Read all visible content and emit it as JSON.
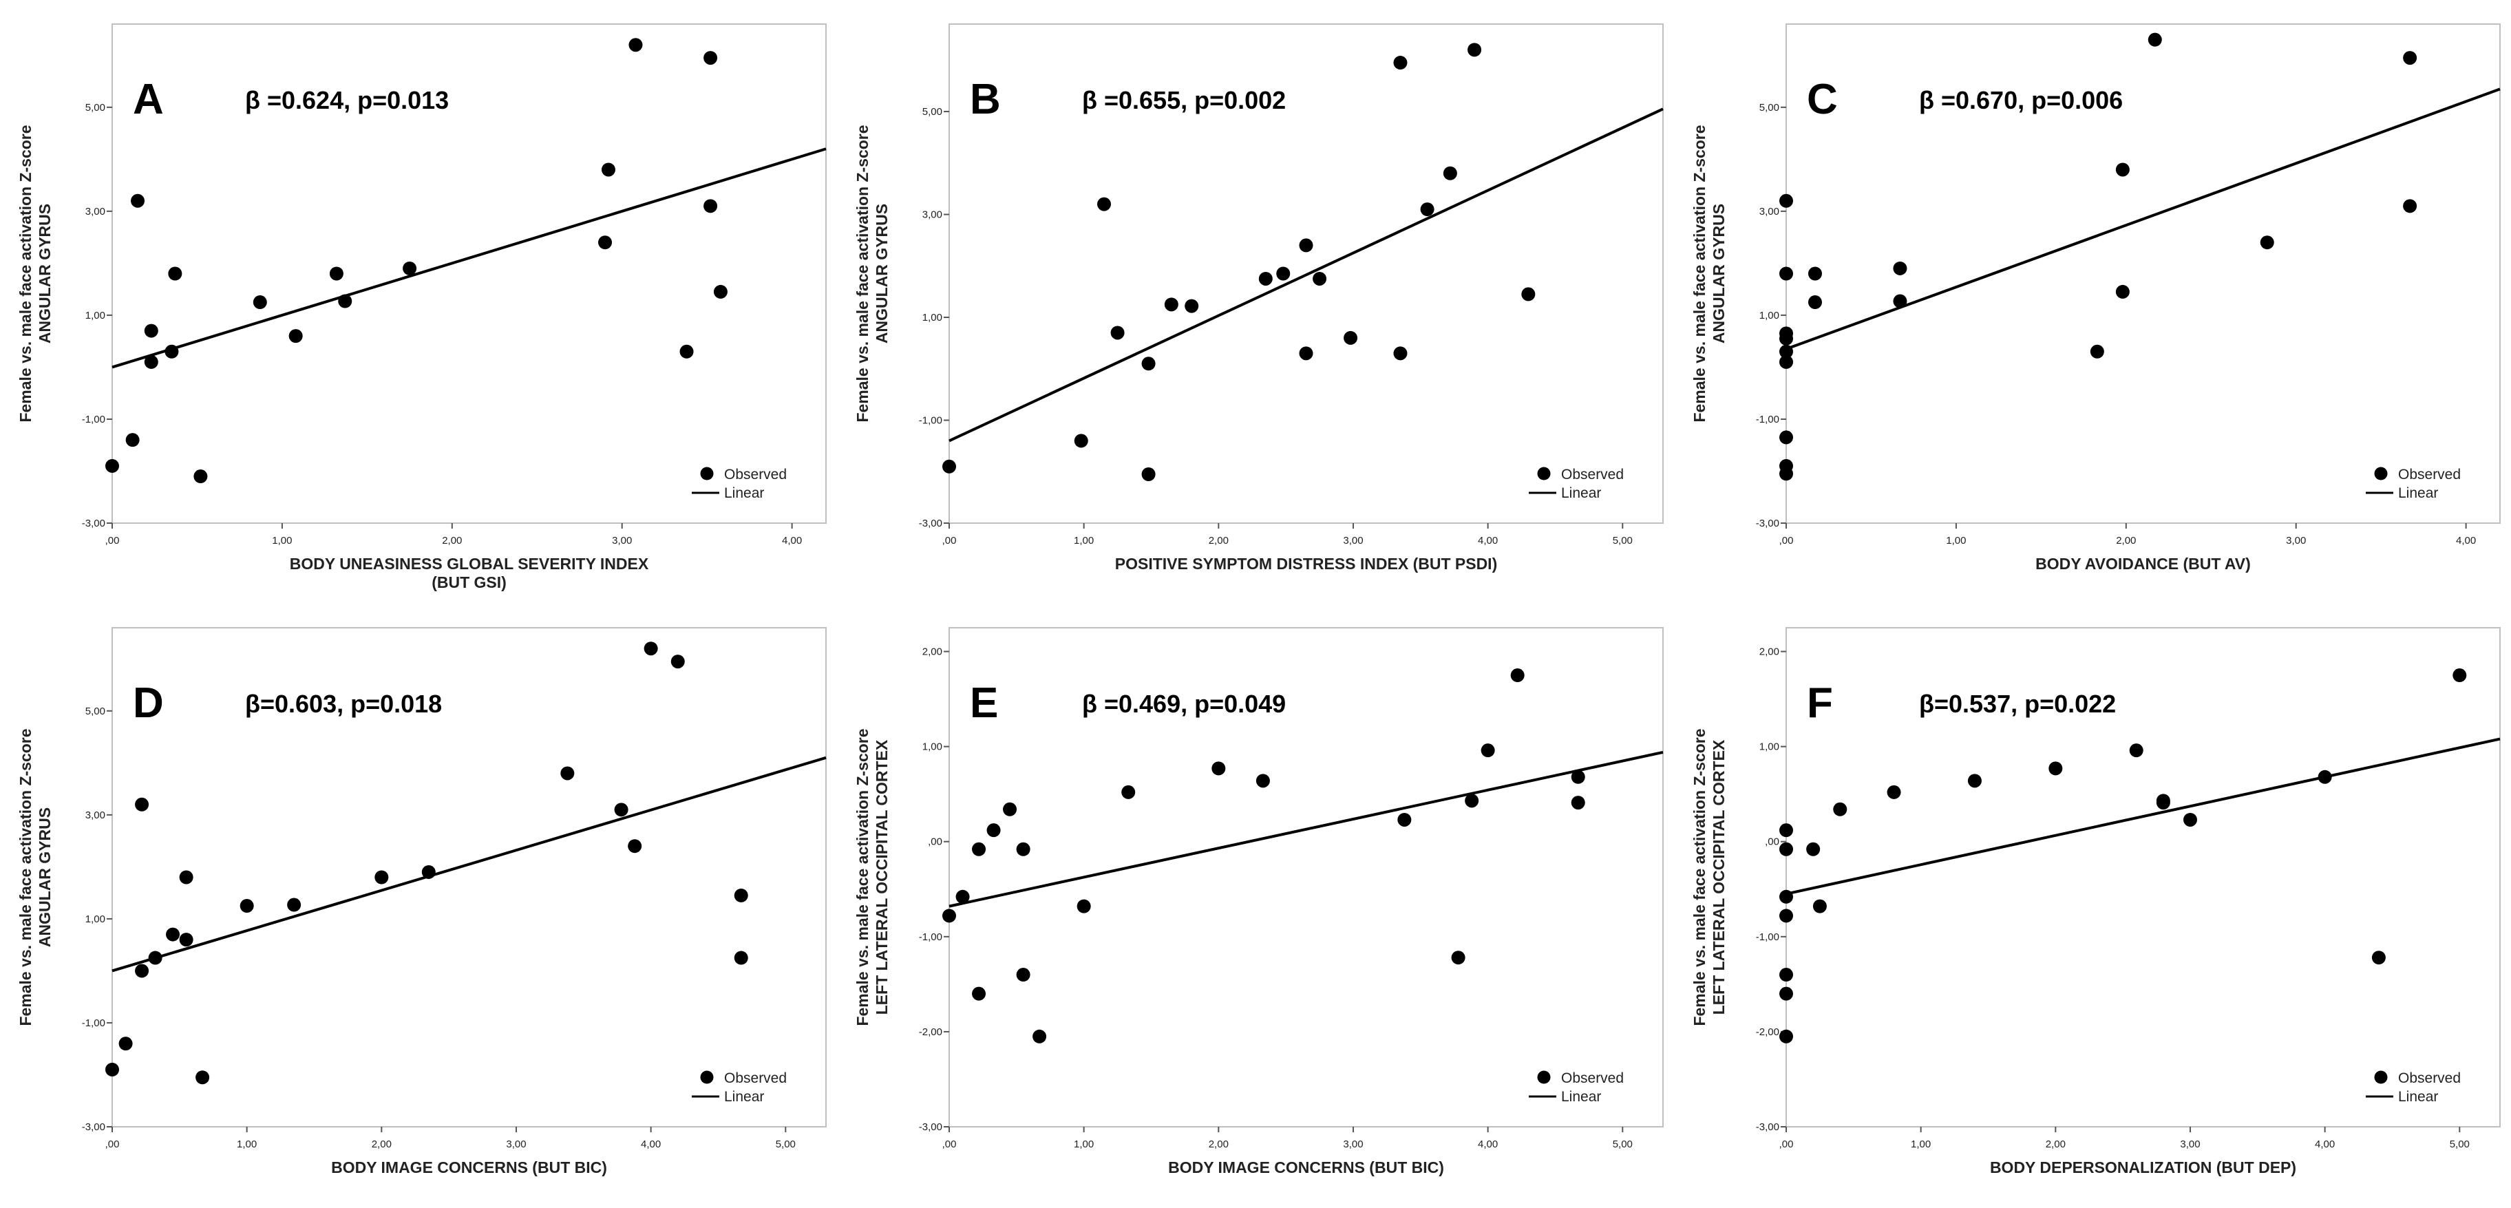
{
  "figure_title": "",
  "legend_labels": {
    "observed": "Observed",
    "linear": "Linear"
  },
  "chart_data": [
    {
      "type": "scatter",
      "panel_letter": "A",
      "stat_label": "β =0.624, p=0.013",
      "xlabel": [
        "BODY UNEASINESS GLOBAL SEVERITY INDEX",
        "(BUT GSI)"
      ],
      "ylabel": [
        "Female vs. male face activation Z-score",
        "ANGULAR GYRUS"
      ],
      "xlim": [
        0,
        4.2
      ],
      "ylim": [
        -3,
        6.6
      ],
      "xticks": [
        0,
        1,
        2,
        3,
        4
      ],
      "xtick_labels": [
        ",00",
        "1,00",
        "2,00",
        "3,00",
        "4,00"
      ],
      "yticks": [
        -3,
        -1,
        1,
        3,
        5
      ],
      "ytick_labels": [
        "-3,00",
        "-1,00",
        "1,00",
        "3,00",
        "5,00"
      ],
      "points": [
        [
          0.0,
          -1.9
        ],
        [
          0.12,
          -1.4
        ],
        [
          0.15,
          3.2
        ],
        [
          0.23,
          0.7
        ],
        [
          0.23,
          0.1
        ],
        [
          0.35,
          0.3
        ],
        [
          0.37,
          1.8
        ],
        [
          0.52,
          -2.1
        ],
        [
          0.87,
          1.25
        ],
        [
          1.08,
          0.6
        ],
        [
          1.32,
          1.8
        ],
        [
          1.37,
          1.27
        ],
        [
          1.75,
          1.9
        ],
        [
          2.9,
          2.4
        ],
        [
          2.92,
          3.8
        ],
        [
          3.08,
          6.2
        ],
        [
          3.38,
          0.3
        ],
        [
          3.52,
          3.1
        ],
        [
          3.52,
          5.95
        ],
        [
          3.58,
          1.45
        ]
      ],
      "fit_line": {
        "x": [
          0,
          4.2
        ],
        "y": [
          0.0,
          4.2
        ]
      }
    },
    {
      "type": "scatter",
      "panel_letter": "B",
      "stat_label": "β =0.655, p=0.002",
      "xlabel": [
        "POSITIVE SYMPTOM DISTRESS INDEX (BUT PSDI)"
      ],
      "ylabel": [
        "Female vs. male face activation Z-score",
        "ANGULAR GYRUS"
      ],
      "xlim": [
        0,
        5.3
      ],
      "ylim": [
        -3,
        6.7
      ],
      "xticks": [
        0,
        1,
        2,
        3,
        4,
        5
      ],
      "xtick_labels": [
        ",00",
        "1,00",
        "2,00",
        "3,00",
        "4,00",
        "5,00"
      ],
      "yticks": [
        -3,
        -1,
        1,
        3,
        5
      ],
      "ytick_labels": [
        "-3,00",
        "-1,00",
        "1,00",
        "3,00",
        "5,00"
      ],
      "points": [
        [
          0.0,
          -1.9
        ],
        [
          0.98,
          -1.4
        ],
        [
          1.15,
          3.2
        ],
        [
          1.25,
          0.7
        ],
        [
          1.48,
          0.1
        ],
        [
          1.48,
          -2.05
        ],
        [
          1.65,
          1.25
        ],
        [
          1.8,
          1.22
        ],
        [
          2.35,
          1.75
        ],
        [
          2.48,
          1.85
        ],
        [
          2.65,
          2.4
        ],
        [
          2.65,
          0.3
        ],
        [
          2.75,
          1.75
        ],
        [
          2.98,
          0.6
        ],
        [
          3.35,
          5.95
        ],
        [
          3.35,
          0.3
        ],
        [
          3.55,
          3.1
        ],
        [
          3.72,
          3.8
        ],
        [
          3.9,
          6.2
        ],
        [
          4.3,
          1.45
        ]
      ],
      "fit_line": {
        "x": [
          0,
          5.3
        ],
        "y": [
          -1.4,
          5.05
        ]
      }
    },
    {
      "type": "scatter",
      "panel_letter": "C",
      "stat_label": "β =0.670, p=0.006",
      "xlabel": [
        "BODY AVOIDANCE (BUT AV)"
      ],
      "ylabel": [
        "Female vs. male face activation Z-score",
        "ANGULAR GYRUS"
      ],
      "xlim": [
        0,
        4.2
      ],
      "ylim": [
        -3,
        6.6
      ],
      "xticks": [
        0,
        1,
        2,
        3,
        4
      ],
      "xtick_labels": [
        ",00",
        "1,00",
        "2,00",
        "3,00",
        "4,00"
      ],
      "yticks": [
        -3,
        -1,
        1,
        3,
        5
      ],
      "ytick_labels": [
        "-3,00",
        "-1,00",
        "1,00",
        "3,00",
        "5,00"
      ],
      "points": [
        [
          0.0,
          3.2
        ],
        [
          0.0,
          1.8
        ],
        [
          0.0,
          0.65
        ],
        [
          0.0,
          0.55
        ],
        [
          0.0,
          0.3
        ],
        [
          0.0,
          0.1
        ],
        [
          0.0,
          -1.35
        ],
        [
          0.0,
          -1.9
        ],
        [
          0.0,
          -2.05
        ],
        [
          0.17,
          1.8
        ],
        [
          0.17,
          1.25
        ],
        [
          0.67,
          1.9
        ],
        [
          0.67,
          1.27
        ],
        [
          1.83,
          0.3
        ],
        [
          1.98,
          3.8
        ],
        [
          1.98,
          1.45
        ],
        [
          2.17,
          6.3
        ],
        [
          2.83,
          2.4
        ],
        [
          3.67,
          5.95
        ],
        [
          3.67,
          3.1
        ]
      ],
      "fit_line": {
        "x": [
          0,
          4.2
        ],
        "y": [
          0.35,
          5.35
        ]
      }
    },
    {
      "type": "scatter",
      "panel_letter": "D",
      "stat_label": "β=0.603, p=0.018",
      "xlabel": [
        "BODY IMAGE CONCERNS (BUT BIC)"
      ],
      "ylabel": [
        "Female vs. male face activation Z-score",
        "ANGULAR GYRUS"
      ],
      "xlim": [
        0,
        5.3
      ],
      "ylim": [
        -3,
        6.6
      ],
      "xticks": [
        0,
        1,
        2,
        3,
        4,
        5
      ],
      "xtick_labels": [
        ",00",
        "1,00",
        "2,00",
        "3,00",
        "4,00",
        "5,00"
      ],
      "yticks": [
        -3,
        -1,
        1,
        3,
        5
      ],
      "ytick_labels": [
        "-3,00",
        "-1,00",
        "1,00",
        "3,00",
        "5,00"
      ],
      "points": [
        [
          0.0,
          -1.9
        ],
        [
          0.1,
          -1.4
        ],
        [
          0.22,
          3.2
        ],
        [
          0.22,
          0.0
        ],
        [
          0.32,
          0.25
        ],
        [
          0.45,
          0.7
        ],
        [
          0.55,
          1.8
        ],
        [
          0.55,
          0.6
        ],
        [
          0.67,
          -2.05
        ],
        [
          1.0,
          1.25
        ],
        [
          1.35,
          1.27
        ],
        [
          2.0,
          1.8
        ],
        [
          2.35,
          1.9
        ],
        [
          3.38,
          3.8
        ],
        [
          3.78,
          3.1
        ],
        [
          3.88,
          2.4
        ],
        [
          4.0,
          6.2
        ],
        [
          4.2,
          5.95
        ],
        [
          4.67,
          1.45
        ],
        [
          4.67,
          0.25
        ]
      ],
      "fit_line": {
        "x": [
          0,
          5.3
        ],
        "y": [
          0.0,
          4.1
        ]
      }
    },
    {
      "type": "scatter",
      "panel_letter": "E",
      "stat_label": "β =0.469, p=0.049",
      "xlabel": [
        "BODY IMAGE CONCERNS (BUT BIC)"
      ],
      "ylabel": [
        "Female vs. male face activation Z-score",
        "LEFT LATERAL OCCIPITAL CORTEX"
      ],
      "xlim": [
        0,
        5.3
      ],
      "ylim": [
        -3,
        2.25
      ],
      "xticks": [
        0,
        1,
        2,
        3,
        4,
        5
      ],
      "xtick_labels": [
        ",00",
        "1,00",
        "2,00",
        "3,00",
        "4,00",
        "5,00"
      ],
      "yticks": [
        -3,
        -2,
        -1,
        0,
        1,
        2
      ],
      "ytick_labels": [
        "-3,00",
        "-2,00",
        "-1,00",
        ",00",
        "1,00",
        "2,00"
      ],
      "points": [
        [
          0.0,
          -0.78
        ],
        [
          0.1,
          -0.58
        ],
        [
          0.22,
          -0.08
        ],
        [
          0.22,
          -1.6
        ],
        [
          0.33,
          0.12
        ],
        [
          0.45,
          0.34
        ],
        [
          0.55,
          -0.08
        ],
        [
          0.55,
          -1.4
        ],
        [
          0.67,
          -2.05
        ],
        [
          1.0,
          -0.68
        ],
        [
          1.33,
          0.52
        ],
        [
          2.0,
          0.77
        ],
        [
          2.33,
          0.64
        ],
        [
          3.38,
          0.23
        ],
        [
          3.88,
          0.43
        ],
        [
          3.78,
          -1.22
        ],
        [
          4.0,
          0.96
        ],
        [
          4.22,
          1.75
        ],
        [
          4.67,
          0.68
        ],
        [
          4.67,
          0.41
        ]
      ],
      "fit_line": {
        "x": [
          0,
          5.3
        ],
        "y": [
          -0.68,
          0.94
        ]
      }
    },
    {
      "type": "scatter",
      "panel_letter": "F",
      "stat_label": "β=0.537, p=0.022",
      "xlabel": [
        "BODY DEPERSONALIZATION (BUT DEP)"
      ],
      "ylabel": [
        "Female vs. male face activation Z-score",
        "LEFT LATERAL OCCIPITAL CORTEX"
      ],
      "xlim": [
        0,
        5.3
      ],
      "ylim": [
        -3,
        2.25
      ],
      "xticks": [
        0,
        1,
        2,
        3,
        4,
        5
      ],
      "xtick_labels": [
        ",00",
        "1,00",
        "2,00",
        "3,00",
        "4,00",
        "5,00"
      ],
      "yticks": [
        -3,
        -2,
        -1,
        0,
        1,
        2
      ],
      "ytick_labels": [
        "-3,00",
        "-2,00",
        "-1,00",
        ",00",
        "1,00",
        "2,00"
      ],
      "points": [
        [
          0.0,
          0.12
        ],
        [
          0.0,
          -0.08
        ],
        [
          0.0,
          -0.58
        ],
        [
          0.0,
          -0.78
        ],
        [
          0.0,
          -1.4
        ],
        [
          0.0,
          -1.6
        ],
        [
          0.0,
          -2.05
        ],
        [
          0.2,
          -0.08
        ],
        [
          0.25,
          -0.68
        ],
        [
          0.4,
          0.34
        ],
        [
          0.8,
          0.52
        ],
        [
          1.4,
          0.64
        ],
        [
          2.0,
          0.77
        ],
        [
          2.6,
          0.96
        ],
        [
          2.8,
          0.43
        ],
        [
          2.8,
          0.41
        ],
        [
          3.0,
          0.23
        ],
        [
          4.0,
          0.68
        ],
        [
          4.4,
          -1.22
        ],
        [
          5.0,
          1.75
        ]
      ],
      "fit_line": {
        "x": [
          0,
          5.3
        ],
        "y": [
          -0.55,
          1.08
        ]
      }
    }
  ]
}
